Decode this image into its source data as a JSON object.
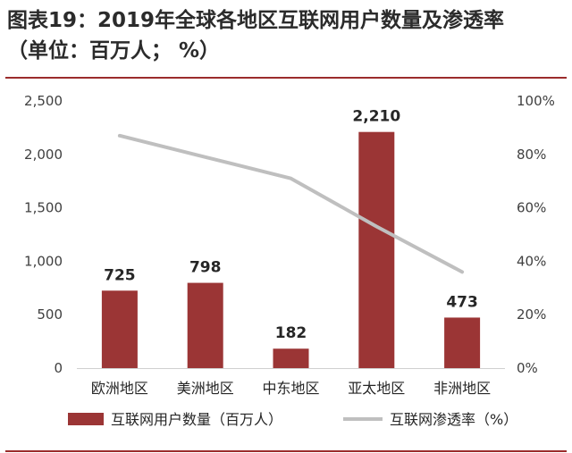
{
  "title": {
    "line1": "图表19：2019年全球各地区互联网用户数量及渗透率",
    "line2": "（单位：百万人； %）"
  },
  "chart_data": {
    "type": "bar",
    "categories": [
      "欧洲地区",
      "美洲地区",
      "中东地区",
      "亚太地区",
      "非洲地区"
    ],
    "series": [
      {
        "name": "互联网用户数量（百万人）",
        "type": "bar",
        "axis": "left",
        "values": [
          725,
          798,
          182,
          2210,
          473
        ],
        "data_labels": [
          "725",
          "798",
          "182",
          "2,210",
          "473"
        ]
      },
      {
        "name": "互联网渗透率（%）",
        "type": "line",
        "axis": "right",
        "values": [
          87,
          79,
          71,
          53,
          36
        ]
      }
    ],
    "y_left": {
      "ylim": [
        0,
        2500
      ],
      "ticks": [
        "0",
        "500",
        "1,000",
        "1,500",
        "2,000",
        "2,500"
      ]
    },
    "y_right": {
      "ylim": [
        0,
        100
      ],
      "ticks": [
        "0%",
        "20%",
        "40%",
        "60%",
        "80%",
        "100%"
      ]
    },
    "grid": false,
    "legend": "bottom",
    "colors": {
      "bar": "#9b3535",
      "line": "#bfbfbf",
      "rule": "#9b2c2c"
    }
  }
}
